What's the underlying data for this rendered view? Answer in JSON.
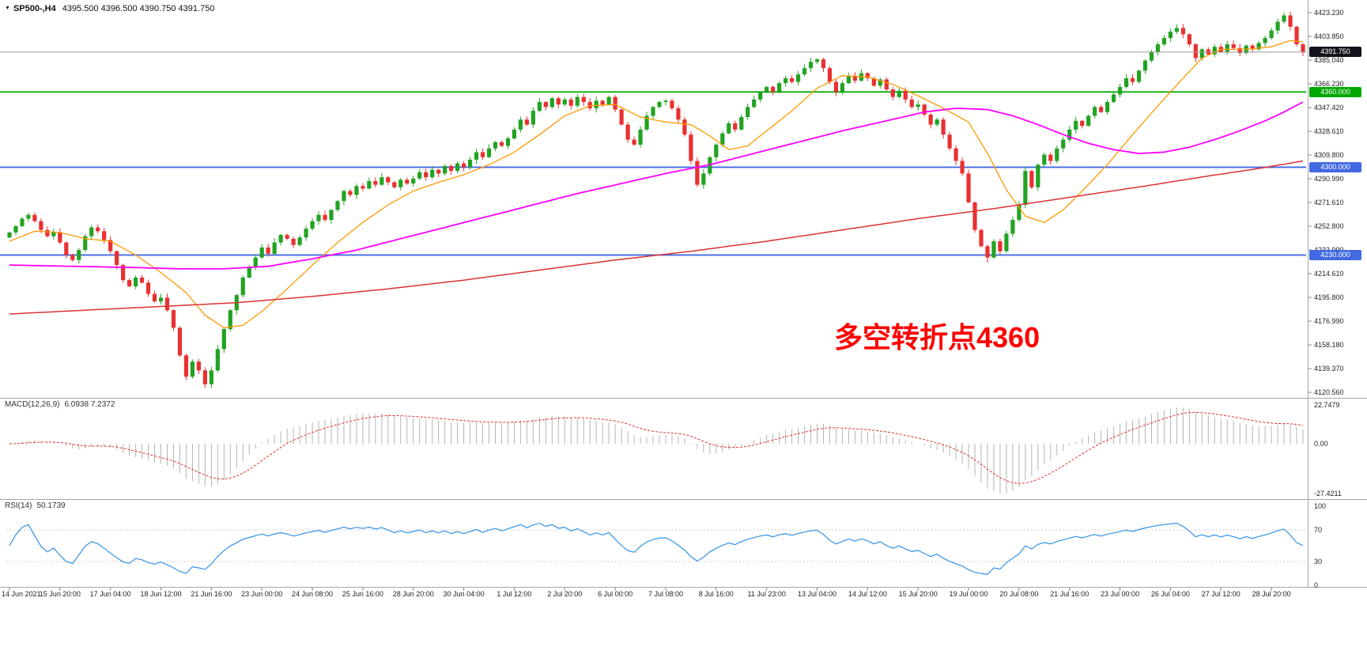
{
  "header": {
    "dropdown_icon": "▼",
    "symbol_period": "SP500-,H4",
    "ohlc": "4395.500 4396.500 4390.750 4391.750"
  },
  "annotation": {
    "text": "多空转折点4360",
    "color": "#ff0000"
  },
  "colors": {
    "bull": "#22a322",
    "bear": "#e93030",
    "ma_fast": "#ff9900",
    "ma_mid": "#ff00ff",
    "ma_slow": "#dc3232",
    "hline_green": "#00a800",
    "hline_blue": "#4169e1",
    "current_line": "#9a9a9a",
    "current_badge_bg": "#13131d",
    "macd_hist": "#b4b4b4",
    "macd_signal": "#e03030",
    "rsi_line": "#3392e6",
    "separator": "#a6a6a6",
    "level_dotted": "#bdbdbd",
    "axis_text": "#1f1f1f"
  },
  "price_axis": {
    "ticks": [
      "4423.230",
      "4403.850",
      "4385.040",
      "4366.230",
      "4347.420",
      "4328.610",
      "4309.800",
      "4290.990",
      "4271.610",
      "4252.800",
      "4233.990",
      "4214.610",
      "4195.800",
      "4176.990",
      "4158.180",
      "4139.370",
      "4120.560"
    ]
  },
  "hlines": [
    {
      "price": 4360.0,
      "label": "4360.000",
      "color_key": "hline_green",
      "name": "hline-4360"
    },
    {
      "price": 4300.0,
      "label": "4300.000",
      "color_key": "hline_blue",
      "name": "hline-4300"
    },
    {
      "price": 4230.0,
      "label": "4230.000",
      "color_key": "hline_blue",
      "name": "hline-4230"
    }
  ],
  "current_price": {
    "value": 4391.75,
    "label": "4391.750"
  },
  "macd_panel": {
    "label": "MACD(12,26,9)",
    "values": "6.0938 7.2372",
    "ticks": [
      "22.7479",
      "0.00",
      "-27.4211"
    ],
    "range": {
      "max": 22.7479,
      "min": -27.4211
    }
  },
  "rsi_panel": {
    "label": "RSI(14)",
    "value": "50.1739",
    "ticks": [
      "100",
      "70",
      "30",
      "0"
    ],
    "levels": [
      70,
      30
    ]
  },
  "chart_data": [
    {
      "type": "candlestick",
      "title": "SP500-,H4",
      "ylabel": "price",
      "ylim": [
        4120.56,
        4423.23
      ],
      "open_first": 4244.0,
      "closes": [
        4248,
        4253,
        4259,
        4262,
        4257,
        4250,
        4245,
        4248,
        4240,
        4230,
        4226,
        4234,
        4245,
        4252,
        4249,
        4242,
        4233,
        4222,
        4210,
        4205,
        4212,
        4208,
        4199,
        4193,
        4196,
        4186,
        4172,
        4150,
        4133,
        4145,
        4138,
        4127,
        4138,
        4155,
        4171,
        4186,
        4198,
        4212,
        4220,
        4228,
        4236,
        4231,
        4240,
        4246,
        4243,
        4238,
        4244,
        4251,
        4257,
        4262,
        4258,
        4266,
        4273,
        4281,
        4278,
        4285,
        4283,
        4289,
        4286,
        4292,
        4288,
        4284,
        4290,
        4287,
        4291,
        4296,
        4292,
        4298,
        4295,
        4301,
        4297,
        4303,
        4300,
        4306,
        4312,
        4308,
        4315,
        4320,
        4317,
        4323,
        4330,
        4338,
        4334,
        4345,
        4352,
        4348,
        4355,
        4350,
        4354,
        4349,
        4356,
        4352,
        4347,
        4353,
        4350,
        4356,
        4346,
        4334,
        4322,
        4318,
        4330,
        4341,
        4348,
        4352,
        4353,
        4347,
        4338,
        4326,
        4305,
        4286,
        4295,
        4308,
        4318,
        4327,
        4335,
        4330,
        4340,
        4348,
        4354,
        4360,
        4364,
        4360,
        4367,
        4371,
        4368,
        4374,
        4379,
        4384,
        4386,
        4379,
        4368,
        4360,
        4367,
        4373,
        4369,
        4375,
        4371,
        4365,
        4370,
        4362,
        4356,
        4361,
        4354,
        4348,
        4350,
        4342,
        4334,
        4338,
        4326,
        4315,
        4305,
        4295,
        4272,
        4250,
        4237,
        4228,
        4241,
        4233,
        4247,
        4258,
        4270,
        4297,
        4284,
        4302,
        4310,
        4305,
        4315,
        4322,
        4330,
        4337,
        4333,
        4341,
        4348,
        4344,
        4352,
        4358,
        4364,
        4371,
        4368,
        4377,
        4385,
        4392,
        4398,
        4403,
        4408,
        4411,
        4406,
        4398,
        4387,
        4394,
        4390,
        4396,
        4392,
        4398,
        4395,
        4391,
        4397,
        4394,
        4399,
        4403,
        4409,
        4416,
        4421,
        4412,
        4398,
        4391.75
      ],
      "extremes": {
        "31": {
          "low": 4124.0
        },
        "155": {
          "low": 4224.0
        },
        "202": {
          "high": 4423.2
        }
      },
      "series": [
        {
          "name": "ma-fast",
          "color_key": "ma_fast",
          "points": [
            [
              0,
              4241
            ],
            [
              4,
              4249
            ],
            [
              8,
              4248
            ],
            [
              12,
              4243
            ],
            [
              16,
              4241
            ],
            [
              20,
              4230
            ],
            [
              24,
              4216
            ],
            [
              28,
              4200
            ],
            [
              31,
              4182
            ],
            [
              34,
              4172
            ],
            [
              37,
              4174
            ],
            [
              40,
              4185
            ],
            [
              44,
              4203
            ],
            [
              48,
              4222
            ],
            [
              52,
              4240
            ],
            [
              56,
              4256
            ],
            [
              60,
              4270
            ],
            [
              64,
              4281
            ],
            [
              68,
              4288
            ],
            [
              72,
              4294
            ],
            [
              76,
              4302
            ],
            [
              80,
              4312
            ],
            [
              84,
              4326
            ],
            [
              88,
              4341
            ],
            [
              92,
              4349
            ],
            [
              96,
              4350
            ],
            [
              100,
              4340
            ],
            [
              104,
              4336
            ],
            [
              108,
              4334
            ],
            [
              111,
              4325
            ],
            [
              114,
              4314
            ],
            [
              117,
              4317
            ],
            [
              120,
              4329
            ],
            [
              124,
              4345
            ],
            [
              128,
              4363
            ],
            [
              132,
              4373
            ],
            [
              136,
              4372
            ],
            [
              140,
              4366
            ],
            [
              144,
              4357
            ],
            [
              148,
              4347
            ],
            [
              152,
              4336
            ],
            [
              155,
              4311
            ],
            [
              158,
              4282
            ],
            [
              161,
              4261
            ],
            [
              164,
              4256
            ],
            [
              167,
              4266
            ],
            [
              170,
              4281
            ],
            [
              174,
              4302
            ],
            [
              178,
              4326
            ],
            [
              182,
              4349
            ],
            [
              186,
              4371
            ],
            [
              189,
              4387
            ],
            [
              192,
              4394
            ],
            [
              196,
              4394
            ],
            [
              200,
              4396
            ],
            [
              203,
              4401
            ],
            [
              205,
              4400
            ]
          ]
        },
        {
          "name": "ma-mid",
          "color_key": "ma_mid",
          "points": [
            [
              0,
              4222
            ],
            [
              10,
              4221
            ],
            [
              20,
              4220
            ],
            [
              27,
              4219
            ],
            [
              34,
              4219
            ],
            [
              41,
              4221
            ],
            [
              48,
              4227
            ],
            [
              55,
              4234
            ],
            [
              62,
              4243
            ],
            [
              69,
              4252
            ],
            [
              76,
              4261
            ],
            [
              83,
              4270
            ],
            [
              90,
              4279
            ],
            [
              97,
              4287
            ],
            [
              104,
              4295
            ],
            [
              111,
              4302
            ],
            [
              118,
              4311
            ],
            [
              125,
              4320
            ],
            [
              132,
              4329
            ],
            [
              139,
              4337
            ],
            [
              145,
              4344
            ],
            [
              150,
              4347
            ],
            [
              155,
              4346
            ],
            [
              159,
              4341
            ],
            [
              163,
              4334
            ],
            [
              167,
              4326
            ],
            [
              171,
              4319
            ],
            [
              175,
              4314
            ],
            [
              179,
              4311
            ],
            [
              183,
              4312
            ],
            [
              187,
              4316
            ],
            [
              191,
              4322
            ],
            [
              195,
              4329
            ],
            [
              199,
              4337
            ],
            [
              202,
              4344
            ],
            [
              205,
              4352
            ]
          ]
        },
        {
          "name": "ma-slow",
          "color_key": "ma_slow",
          "points": [
            [
              0,
              4183
            ],
            [
              12,
              4186
            ],
            [
              24,
              4189
            ],
            [
              36,
              4192
            ],
            [
              48,
              4197
            ],
            [
              60,
              4203
            ],
            [
              72,
              4210
            ],
            [
              84,
              4218
            ],
            [
              96,
              4226
            ],
            [
              108,
              4233
            ],
            [
              120,
              4241
            ],
            [
              132,
              4250
            ],
            [
              144,
              4259
            ],
            [
              156,
              4267
            ],
            [
              168,
              4276
            ],
            [
              180,
              4285
            ],
            [
              190,
              4293
            ],
            [
              198,
              4299
            ],
            [
              205,
              4305
            ]
          ]
        }
      ],
      "time_labels": [
        "14 Jun 2021",
        "15 Jun 20:00",
        "17 Jun 04:00",
        "18 Jun 12:00",
        "21 Jun 16:00",
        "23 Jun 00:00",
        "24 Jun 08:00",
        "25 Jun 16:00",
        "28 Jun 20:00",
        "30 Jun 04:00",
        "1 Jul 12:00",
        "2 Jul 20:00",
        "6 Jul 00:00",
        "7 Jul 08:00",
        "8 Jul 16:00",
        "11 Jul 23:00",
        "13 Jul 04:00",
        "14 Jul 12:00",
        "15 Jul 20:00",
        "19 Jul 00:00",
        "20 Jul 08:00",
        "21 Jul 16:00",
        "23 Jul 00:00",
        "26 Jul 04:00",
        "27 Jul 12:00",
        "28 Jul 20:00"
      ]
    },
    {
      "type": "bar",
      "title": "MACD(12,26,9)",
      "computed": "EMA12-EMA26 of candlestick closes, signal = EMA9 of MACD",
      "ylim": [
        -27.4211,
        22.7479
      ],
      "last_values": [
        6.0938,
        7.2372
      ]
    },
    {
      "type": "line",
      "title": "RSI(14)",
      "computed": "Wilder RSI(14) of candlestick closes",
      "ylim": [
        0,
        100
      ],
      "levels": [
        70,
        30
      ],
      "last_value": 50.1739
    }
  ]
}
